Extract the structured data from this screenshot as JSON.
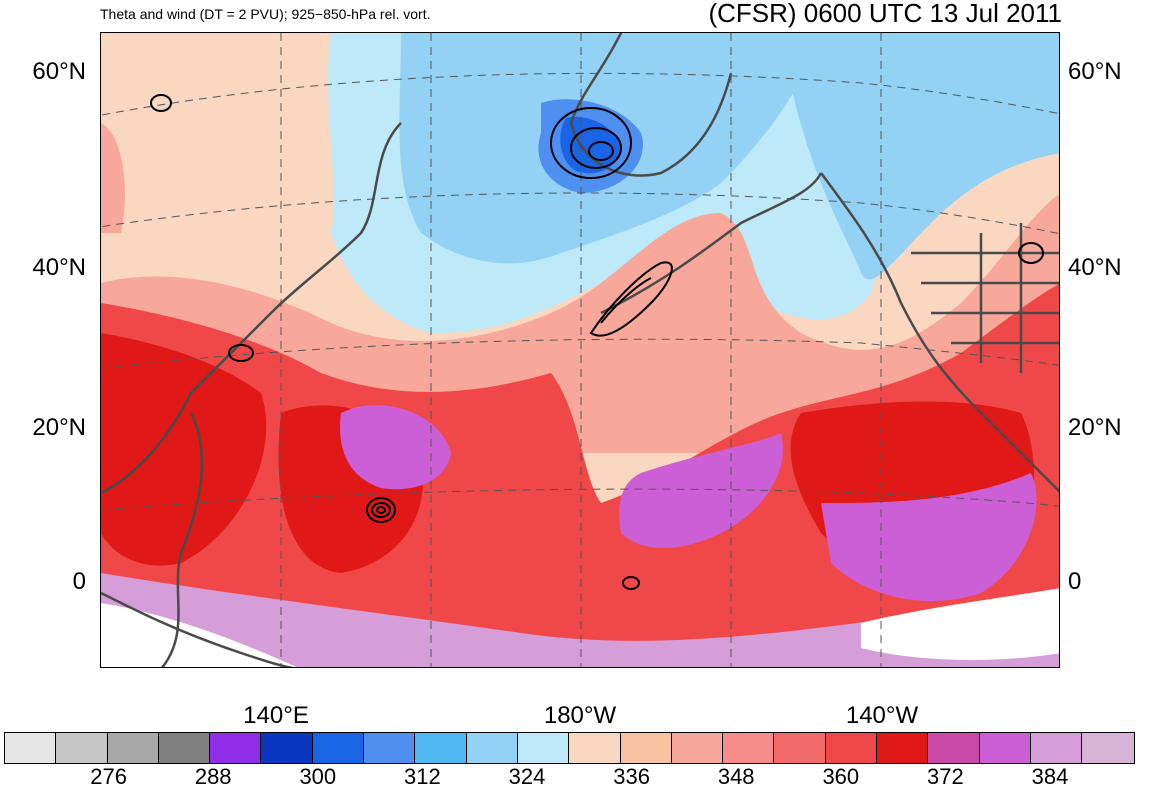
{
  "header": {
    "left_title": "Theta and wind (DT = 2 PVU); 925−850-hPa rel. vort.",
    "right_title": "(CFSR) 0600 UTC 13 Jul 2011"
  },
  "lat_labels": [
    "60°N",
    "40°N",
    "20°N",
    "0"
  ],
  "lon_labels": [
    "140°E",
    "180°W",
    "140°W"
  ],
  "colorbar": {
    "colors": [
      "#e6e6e6",
      "#c6c6c6",
      "#a8a8a8",
      "#808080",
      "#8f2de8",
      "#0a36c0",
      "#1a64e6",
      "#4f8ff0",
      "#4fb8f2",
      "#94d2f5",
      "#bde9f8",
      "#f9d7c0",
      "#f8c2a0",
      "#f8a89a",
      "#f68c8c",
      "#f26a6a",
      "#f04848",
      "#e01818",
      "#c84aa6",
      "#cc5ed6",
      "#d59ed8",
      "#d7b4d7"
    ],
    "labels": [
      "276",
      "288",
      "300",
      "312",
      "324",
      "336",
      "348",
      "360",
      "372",
      "384"
    ]
  },
  "map_colors": {
    "tropics_hot": "#f04848",
    "tropics_deep": "#e01818",
    "purple": "#cc5ed6",
    "light_purple": "#d59ed8",
    "salmon": "#f8a89a",
    "peach": "#f9d7c0",
    "light_blue": "#bde9f8",
    "blue": "#94d2f5",
    "deep_blue": "#1a64e6",
    "coast": "#4a4a4a"
  }
}
